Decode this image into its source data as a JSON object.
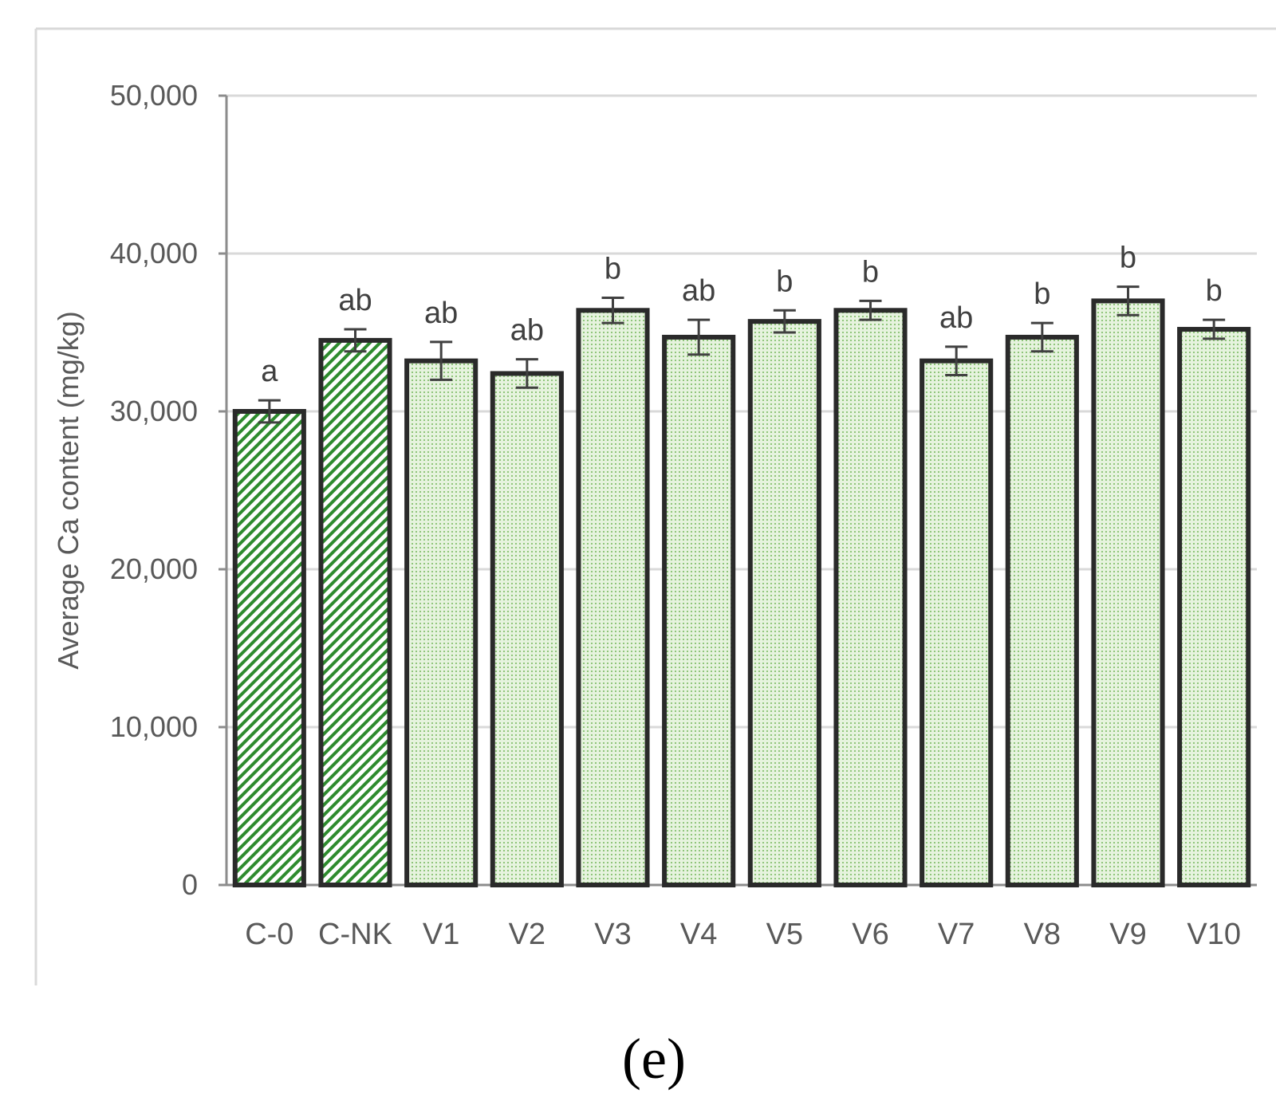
{
  "chart_data": {
    "type": "bar",
    "ylabel": "Average Ca content (mg/kg)",
    "xlabel": "",
    "ylim": [
      0,
      50000
    ],
    "yticks": [
      0,
      10000,
      20000,
      30000,
      40000,
      50000
    ],
    "ytick_labels": [
      "0",
      "10,000",
      "20,000",
      "30,000",
      "40,000",
      "50,000"
    ],
    "grid": "horizontal",
    "categories": [
      "C-0",
      "C-NK",
      "V1",
      "V2",
      "V3",
      "V4",
      "V5",
      "V6",
      "V7",
      "V8",
      "V9",
      "V10"
    ],
    "values": [
      30000,
      34500,
      33200,
      32400,
      36400,
      34700,
      35700,
      36400,
      33200,
      34700,
      37000,
      35200
    ],
    "errors": [
      700,
      700,
      1200,
      900,
      800,
      1100,
      700,
      600,
      900,
      900,
      900,
      600
    ],
    "significance": [
      "a",
      "ab",
      "ab",
      "ab",
      "b",
      "ab",
      "b",
      "b",
      "ab",
      "b",
      "b",
      "b"
    ],
    "fill_patterns": [
      "diagonal",
      "diagonal",
      "dotted",
      "dotted",
      "dotted",
      "dotted",
      "dotted",
      "dotted",
      "dotted",
      "dotted",
      "dotted",
      "dotted"
    ],
    "colors": {
      "bar_pattern": "#2e8b2e",
      "bar_fill": "#e3f1db",
      "bar_outline": "#2a2a2a",
      "grid": "#d9d9d9",
      "axis": "#8c8c8c"
    }
  },
  "panel_label": "(e)"
}
